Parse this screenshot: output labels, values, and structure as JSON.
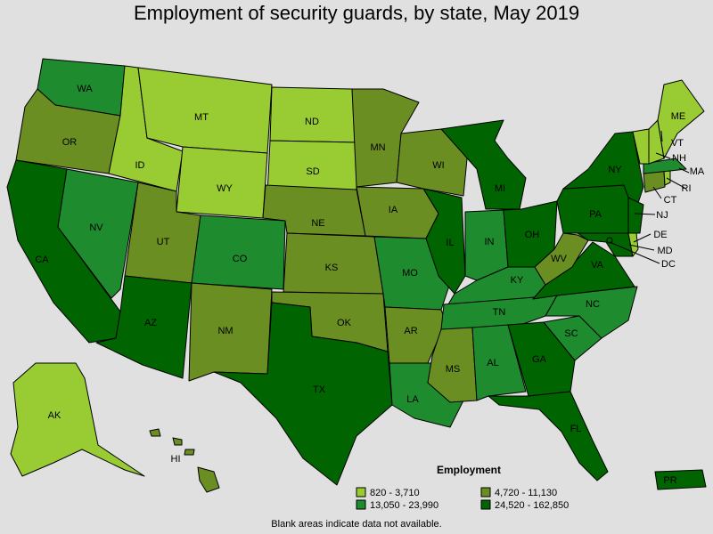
{
  "title": "Employment of security guards, by state, May 2019",
  "footnote": "Blank areas indicate data not available.",
  "legend": {
    "title": "Employment",
    "items": [
      {
        "key": "c1",
        "label": "820 - 3,710"
      },
      {
        "key": "c2",
        "label": "4,720 - 11,130"
      },
      {
        "key": "c3",
        "label": "13,050 - 23,990"
      },
      {
        "key": "c4",
        "label": "24,520 - 162,850"
      }
    ]
  },
  "colors": {
    "c1": "#99cc33",
    "c2": "#6b8e23",
    "c3": "#1e8b2e",
    "c4": "#006400",
    "background": "#e0e0e0"
  },
  "states": [
    {
      "abbr": "WA",
      "cls": "c3"
    },
    {
      "abbr": "OR",
      "cls": "c2"
    },
    {
      "abbr": "CA",
      "cls": "c4"
    },
    {
      "abbr": "NV",
      "cls": "c3"
    },
    {
      "abbr": "ID",
      "cls": "c1"
    },
    {
      "abbr": "MT",
      "cls": "c1"
    },
    {
      "abbr": "WY",
      "cls": "c1"
    },
    {
      "abbr": "UT",
      "cls": "c2"
    },
    {
      "abbr": "AZ",
      "cls": "c4"
    },
    {
      "abbr": "CO",
      "cls": "c3"
    },
    {
      "abbr": "NM",
      "cls": "c2"
    },
    {
      "abbr": "ND",
      "cls": "c1"
    },
    {
      "abbr": "SD",
      "cls": "c1"
    },
    {
      "abbr": "NE",
      "cls": "c2"
    },
    {
      "abbr": "KS",
      "cls": "c2"
    },
    {
      "abbr": "OK",
      "cls": "c2"
    },
    {
      "abbr": "TX",
      "cls": "c4"
    },
    {
      "abbr": "MN",
      "cls": "c2"
    },
    {
      "abbr": "IA",
      "cls": "c2"
    },
    {
      "abbr": "MO",
      "cls": "c3"
    },
    {
      "abbr": "AR",
      "cls": "c2"
    },
    {
      "abbr": "LA",
      "cls": "c3"
    },
    {
      "abbr": "WI",
      "cls": "c2"
    },
    {
      "abbr": "IL",
      "cls": "c4"
    },
    {
      "abbr": "MI",
      "cls": "c4"
    },
    {
      "abbr": "IN",
      "cls": "c3"
    },
    {
      "abbr": "OH",
      "cls": "c4"
    },
    {
      "abbr": "KY",
      "cls": "c3"
    },
    {
      "abbr": "TN",
      "cls": "c3"
    },
    {
      "abbr": "MS",
      "cls": "c2"
    },
    {
      "abbr": "AL",
      "cls": "c3"
    },
    {
      "abbr": "GA",
      "cls": "c4"
    },
    {
      "abbr": "FL",
      "cls": "c4"
    },
    {
      "abbr": "SC",
      "cls": "c3"
    },
    {
      "abbr": "NC",
      "cls": "c3"
    },
    {
      "abbr": "VA",
      "cls": "c4"
    },
    {
      "abbr": "WV",
      "cls": "c2"
    },
    {
      "abbr": "PA",
      "cls": "c4"
    },
    {
      "abbr": "NY",
      "cls": "c4"
    },
    {
      "abbr": "NJ",
      "cls": "c4"
    },
    {
      "abbr": "DE",
      "cls": "c1"
    },
    {
      "abbr": "MD",
      "cls": "c4"
    },
    {
      "abbr": "DC",
      "cls": "c4"
    },
    {
      "abbr": "CT",
      "cls": "c2"
    },
    {
      "abbr": "RI",
      "cls": "c1"
    },
    {
      "abbr": "MA",
      "cls": "c3"
    },
    {
      "abbr": "VT",
      "cls": "c1"
    },
    {
      "abbr": "NH",
      "cls": "c1"
    },
    {
      "abbr": "ME",
      "cls": "c1"
    },
    {
      "abbr": "AK",
      "cls": "c1"
    },
    {
      "abbr": "HI",
      "cls": "c2"
    },
    {
      "abbr": "PR",
      "cls": "c4"
    }
  ]
}
